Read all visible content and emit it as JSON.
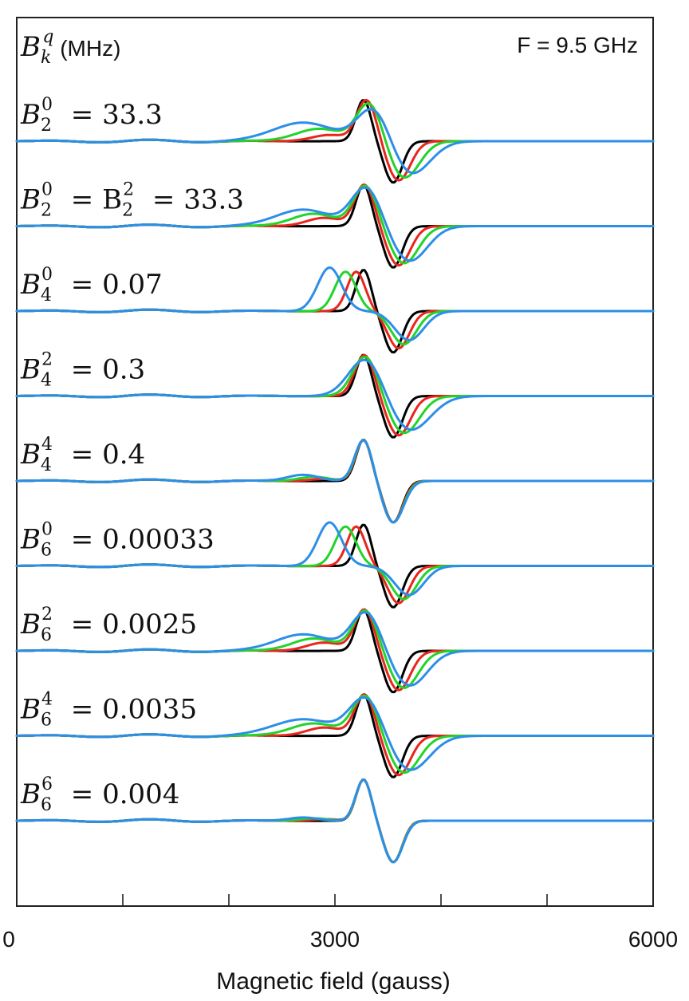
{
  "header": {
    "unit_symbol": "B",
    "unit_sub": "k",
    "unit_sup": "q",
    "unit_text": " (MHz)",
    "frequency": "F = 9.5 GHz"
  },
  "colors": {
    "series": [
      "#000000",
      "#e8261c",
      "#22d42a",
      "#2d8ee8"
    ],
    "axis": "#222222"
  },
  "chart_data": {
    "type": "line",
    "title": "",
    "xlabel": "Magnetic field (gauss)",
    "ylabel": "",
    "xlim": [
      0,
      6000
    ],
    "x_tick_labels": [
      "0",
      "3000",
      "6000"
    ],
    "x_minor_ticks": [
      1000,
      2000,
      3000,
      4000,
      5000
    ],
    "grid": false,
    "legend": "none",
    "panels": [
      {
        "sym_sub": "2",
        "sym_sup": "0",
        "value_text": "= 33.3",
        "peaks": [
          {
            "x": 3270,
            "a": 1.0
          },
          {
            "x": 3300,
            "a": 1.0
          },
          {
            "x": 3330,
            "a": 0.95
          },
          {
            "x": 3380,
            "a": 0.9
          }
        ],
        "troughs": [
          {
            "x": 3550,
            "a": -1.0
          },
          {
            "x": 3600,
            "a": -0.95
          },
          {
            "x": 3650,
            "a": -0.9
          },
          {
            "x": 3700,
            "a": -0.85
          }
        ],
        "widths": [
          1.0,
          1.3,
          1.7,
          2.2
        ],
        "shoulders": [
          {
            "x": 0,
            "a": 0
          },
          {
            "x": 2950,
            "a": 0.15
          },
          {
            "x": 2850,
            "a": 0.3
          },
          {
            "x": 2700,
            "a": 0.45
          }
        ]
      },
      {
        "sym_sub": "2",
        "sym_sup": "0",
        "value_text": "= B",
        "sym2_sub": "2",
        "sym2_sup": "2",
        "value2_text": "= 33.3",
        "peaks": [
          {
            "x": 3270,
            "a": 1.0
          },
          {
            "x": 3280,
            "a": 1.0
          },
          {
            "x": 3290,
            "a": 0.98
          },
          {
            "x": 3300,
            "a": 0.95
          }
        ],
        "troughs": [
          {
            "x": 3550,
            "a": -1.0
          },
          {
            "x": 3600,
            "a": -0.95
          },
          {
            "x": 3650,
            "a": -0.9
          },
          {
            "x": 3700,
            "a": -0.85
          }
        ],
        "widths": [
          1.0,
          1.3,
          1.6,
          2.0
        ],
        "shoulders": [
          {
            "x": 0,
            "a": 0
          },
          {
            "x": 2900,
            "a": 0.2
          },
          {
            "x": 2800,
            "a": 0.3
          },
          {
            "x": 2700,
            "a": 0.4
          }
        ]
      },
      {
        "sym_sub": "4",
        "sym_sup": "0",
        "value_text": "= 0.07",
        "peaks": [
          {
            "x": 3270,
            "a": 1.0
          },
          {
            "x": 3200,
            "a": 0.95
          },
          {
            "x": 3100,
            "a": 0.95
          },
          {
            "x": 2950,
            "a": 1.05
          }
        ],
        "troughs": [
          {
            "x": 3550,
            "a": -1.0
          },
          {
            "x": 3600,
            "a": -0.9
          },
          {
            "x": 3650,
            "a": -0.8
          },
          {
            "x": 3700,
            "a": -0.7
          }
        ],
        "widths": [
          1.0,
          1.2,
          1.4,
          1.6
        ],
        "shoulders": [
          {
            "x": 0,
            "a": 0
          },
          {
            "x": 0,
            "a": 0
          },
          {
            "x": 0,
            "a": 0
          },
          {
            "x": 0,
            "a": 0
          }
        ]
      },
      {
        "sym_sub": "4",
        "sym_sup": "2",
        "value_text": "= 0.3",
        "peaks": [
          {
            "x": 3270,
            "a": 1.0
          },
          {
            "x": 3280,
            "a": 1.0
          },
          {
            "x": 3290,
            "a": 0.98
          },
          {
            "x": 3300,
            "a": 0.96
          }
        ],
        "troughs": [
          {
            "x": 3550,
            "a": -1.0
          },
          {
            "x": 3600,
            "a": -0.95
          },
          {
            "x": 3650,
            "a": -0.9
          },
          {
            "x": 3700,
            "a": -0.85
          }
        ],
        "widths": [
          1.0,
          1.3,
          1.7,
          2.3
        ],
        "shoulders": [
          {
            "x": 0,
            "a": 0
          },
          {
            "x": 0,
            "a": 0
          },
          {
            "x": 0,
            "a": 0
          },
          {
            "x": 0,
            "a": 0
          }
        ]
      },
      {
        "sym_sub": "4",
        "sym_sup": "4",
        "value_text": "= 0.4",
        "peaks": [
          {
            "x": 3270,
            "a": 1.0
          },
          {
            "x": 3270,
            "a": 1.0
          },
          {
            "x": 3270,
            "a": 1.0
          },
          {
            "x": 3270,
            "a": 1.0
          }
        ],
        "troughs": [
          {
            "x": 3550,
            "a": -1.0
          },
          {
            "x": 3550,
            "a": -1.0
          },
          {
            "x": 3550,
            "a": -1.0
          },
          {
            "x": 3550,
            "a": -1.0
          }
        ],
        "widths": [
          1.0,
          1.05,
          1.1,
          1.15
        ],
        "shoulders": [
          {
            "x": 0,
            "a": 0
          },
          {
            "x": 2900,
            "a": 0.05
          },
          {
            "x": 2800,
            "a": 0.1
          },
          {
            "x": 2700,
            "a": 0.15
          }
        ]
      },
      {
        "sym_sub": "6",
        "sym_sup": "0",
        "value_text": "= 0.00033",
        "peaks": [
          {
            "x": 3270,
            "a": 1.0
          },
          {
            "x": 3200,
            "a": 0.95
          },
          {
            "x": 3100,
            "a": 0.95
          },
          {
            "x": 2950,
            "a": 1.05
          }
        ],
        "troughs": [
          {
            "x": 3550,
            "a": -1.0
          },
          {
            "x": 3600,
            "a": -0.9
          },
          {
            "x": 3650,
            "a": -0.8
          },
          {
            "x": 3700,
            "a": -0.7
          }
        ],
        "widths": [
          1.0,
          1.2,
          1.4,
          1.6
        ],
        "shoulders": [
          {
            "x": 0,
            "a": 0
          },
          {
            "x": 0,
            "a": 0
          },
          {
            "x": 0,
            "a": 0
          },
          {
            "x": 0,
            "a": 0
          }
        ]
      },
      {
        "sym_sub": "6",
        "sym_sup": "2",
        "value_text": "= 0.0025",
        "peaks": [
          {
            "x": 3270,
            "a": 1.0
          },
          {
            "x": 3280,
            "a": 1.0
          },
          {
            "x": 3290,
            "a": 0.98
          },
          {
            "x": 3300,
            "a": 0.95
          }
        ],
        "troughs": [
          {
            "x": 3550,
            "a": -1.0
          },
          {
            "x": 3600,
            "a": -0.95
          },
          {
            "x": 3650,
            "a": -0.9
          },
          {
            "x": 3700,
            "a": -0.85
          }
        ],
        "widths": [
          1.0,
          1.3,
          1.6,
          2.0
        ],
        "shoulders": [
          {
            "x": 0,
            "a": 0
          },
          {
            "x": 2900,
            "a": 0.2
          },
          {
            "x": 2800,
            "a": 0.3
          },
          {
            "x": 2700,
            "a": 0.4
          }
        ]
      },
      {
        "sym_sub": "6",
        "sym_sup": "4",
        "value_text": "= 0.0035",
        "peaks": [
          {
            "x": 3270,
            "a": 1.0
          },
          {
            "x": 3280,
            "a": 1.0
          },
          {
            "x": 3290,
            "a": 0.98
          },
          {
            "x": 3300,
            "a": 0.95
          }
        ],
        "troughs": [
          {
            "x": 3550,
            "a": -1.0
          },
          {
            "x": 3600,
            "a": -0.95
          },
          {
            "x": 3650,
            "a": -0.9
          },
          {
            "x": 3700,
            "a": -0.85
          }
        ],
        "widths": [
          1.0,
          1.3,
          1.7,
          2.2
        ],
        "shoulders": [
          {
            "x": 0,
            "a": 0
          },
          {
            "x": 2900,
            "a": 0.2
          },
          {
            "x": 2800,
            "a": 0.3
          },
          {
            "x": 2700,
            "a": 0.4
          }
        ]
      },
      {
        "sym_sub": "6",
        "sym_sup": "6",
        "value_text": "= 0.004",
        "peaks": [
          {
            "x": 3270,
            "a": 1.0
          },
          {
            "x": 3270,
            "a": 1.0
          },
          {
            "x": 3270,
            "a": 1.0
          },
          {
            "x": 3270,
            "a": 1.0
          }
        ],
        "troughs": [
          {
            "x": 3550,
            "a": -1.0
          },
          {
            "x": 3550,
            "a": -1.0
          },
          {
            "x": 3550,
            "a": -1.0
          },
          {
            "x": 3550,
            "a": -1.0
          }
        ],
        "widths": [
          1.0,
          1.0,
          1.02,
          1.05
        ],
        "shoulders": [
          {
            "x": 0,
            "a": 0
          },
          {
            "x": 2900,
            "a": 0.04
          },
          {
            "x": 2800,
            "a": 0.06
          },
          {
            "x": 2700,
            "a": 0.08
          }
        ]
      }
    ]
  }
}
